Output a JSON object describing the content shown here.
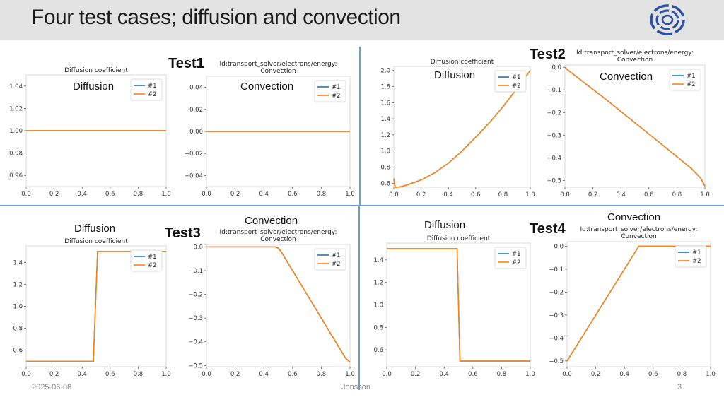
{
  "slide": {
    "title": "Four test cases; diffusion and convection",
    "test1_label": "Test1",
    "test2_label": "Test2",
    "test3_label": "Test3",
    "test4_label": "Test4",
    "footer": {
      "date": "2025-06-08",
      "author": "Jonsson",
      "page": "3"
    }
  },
  "labels": {
    "diffusion": "Diffusion",
    "convection": "Convection"
  },
  "colors": {
    "series1": "#1f77b4",
    "series2": "#ff7f0e",
    "divider": "#6a9fd0",
    "header_bg": "#e3e3e3"
  },
  "chart_data": [
    {
      "id": "t1d",
      "type": "line",
      "title": "Diffusion coefficient",
      "title2": "",
      "overlay": "Diffusion",
      "xlim": [
        0,
        1
      ],
      "ylim": [
        0.95,
        1.05
      ],
      "xticks": [
        "0.0",
        "0.2",
        "0.4",
        "0.6",
        "0.8",
        "1.0"
      ],
      "yticks": [
        "0.96",
        "0.98",
        "1.00",
        "1.02",
        "1.04"
      ],
      "series": [
        {
          "name": "#1",
          "x": [
            0,
            1
          ],
          "y": [
            1,
            1
          ]
        },
        {
          "name": "#2",
          "x": [
            0,
            1
          ],
          "y": [
            1,
            1
          ]
        }
      ]
    },
    {
      "id": "t1c",
      "type": "line",
      "title": "Id:transport_solver/electrons/energy:",
      "title2": "Convection",
      "overlay": "Convection",
      "xlim": [
        0,
        1
      ],
      "ylim": [
        -0.05,
        0.05
      ],
      "xticks": [
        "0.0",
        "0.2",
        "0.4",
        "0.6",
        "0.8",
        "1.0"
      ],
      "yticks": [
        "−0.04",
        "−0.02",
        "0.00",
        "0.02",
        "0.04"
      ],
      "series": [
        {
          "name": "#1",
          "x": [
            0,
            1
          ],
          "y": [
            0,
            0
          ]
        },
        {
          "name": "#2",
          "x": [
            0,
            1
          ],
          "y": [
            0,
            0
          ]
        }
      ]
    },
    {
      "id": "t2d",
      "type": "line",
      "title": "Diffusion coefficient",
      "title2": "",
      "overlay": "Diffusion",
      "xlim": [
        0,
        1
      ],
      "ylim": [
        0.55,
        2.05
      ],
      "xticks": [
        "0.0",
        "0.2",
        "0.4",
        "0.6",
        "0.8",
        "1.0"
      ],
      "yticks": [
        "0.6",
        "0.8",
        "1.0",
        "1.2",
        "1.4",
        "1.6",
        "1.8",
        "2.0"
      ],
      "series": [
        {
          "name": "#1",
          "x": [
            0,
            0.01,
            0.02,
            0.05,
            0.1,
            0.2,
            0.3,
            0.4,
            0.5,
            0.6,
            0.7,
            0.8,
            0.9,
            1.0
          ],
          "y": [
            0.66,
            0.55,
            0.55,
            0.555,
            0.58,
            0.64,
            0.73,
            0.85,
            1.0,
            1.17,
            1.35,
            1.55,
            1.77,
            2.0
          ]
        },
        {
          "name": "#2",
          "x": [
            0,
            0.01,
            0.02,
            0.05,
            0.1,
            0.2,
            0.3,
            0.4,
            0.5,
            0.6,
            0.7,
            0.8,
            0.9,
            1.0
          ],
          "y": [
            0.66,
            0.55,
            0.55,
            0.555,
            0.58,
            0.64,
            0.73,
            0.85,
            1.0,
            1.17,
            1.35,
            1.55,
            1.77,
            2.0
          ]
        }
      ]
    },
    {
      "id": "t2c",
      "type": "line",
      "title": "Id:transport_solver/electrons/energy:",
      "title2": "Convection",
      "overlay": "Convection",
      "xlim": [
        0,
        1
      ],
      "ylim": [
        -0.53,
        0.01
      ],
      "xticks": [
        "0.0",
        "0.2",
        "0.4",
        "0.6",
        "0.8",
        "1.0"
      ],
      "yticks": [
        "−0.5",
        "−0.4",
        "−0.3",
        "−0.2",
        "−0.1",
        "0.0"
      ],
      "series": [
        {
          "name": "#1",
          "x": [
            0,
            0.02,
            0.1,
            0.3,
            0.5,
            0.7,
            0.9,
            0.97,
            1.0
          ],
          "y": [
            0,
            -0.012,
            -0.05,
            -0.145,
            -0.245,
            -0.345,
            -0.445,
            -0.49,
            -0.525
          ]
        },
        {
          "name": "#2",
          "x": [
            0,
            0.02,
            0.1,
            0.3,
            0.5,
            0.7,
            0.9,
            0.97,
            1.0
          ],
          "y": [
            0,
            -0.012,
            -0.05,
            -0.145,
            -0.245,
            -0.345,
            -0.445,
            -0.49,
            -0.525
          ]
        }
      ]
    },
    {
      "id": "t3d",
      "type": "line",
      "title": "Diffusion coefficient",
      "title2": "",
      "overlay": "Diffusion",
      "xlim": [
        0,
        1
      ],
      "ylim": [
        0.45,
        1.55
      ],
      "xticks": [
        "0.0",
        "0.2",
        "0.4",
        "0.6",
        "0.8",
        "1.0"
      ],
      "yticks": [
        "0.6",
        "0.8",
        "1.0",
        "1.2",
        "1.4"
      ],
      "series": [
        {
          "name": "#1",
          "x": [
            0,
            0.48,
            0.51,
            1.0
          ],
          "y": [
            0.5,
            0.5,
            1.5,
            1.5
          ]
        },
        {
          "name": "#2",
          "x": [
            0,
            0.48,
            0.51,
            1.0
          ],
          "y": [
            0.5,
            0.5,
            1.5,
            1.5
          ]
        }
      ]
    },
    {
      "id": "t3c",
      "type": "line",
      "title": "Id:transport_solver/electrons/energy:",
      "title2": "Convection",
      "overlay": "Convection",
      "xlim": [
        0,
        1
      ],
      "ylim": [
        -0.505,
        0.01
      ],
      "xticks": [
        "0.0",
        "0.2",
        "0.4",
        "0.6",
        "0.8",
        "1.0"
      ],
      "yticks": [
        "−0.5",
        "−0.4",
        "−0.3",
        "−0.2",
        "−0.1",
        "0.0"
      ],
      "series": [
        {
          "name": "#1",
          "x": [
            0,
            0.48,
            0.5,
            0.52,
            0.7,
            0.9,
            0.97,
            1.0
          ],
          "y": [
            0,
            0,
            -0.005,
            -0.02,
            -0.2,
            -0.4,
            -0.47,
            -0.485
          ]
        },
        {
          "name": "#2",
          "x": [
            0,
            0.48,
            0.5,
            0.52,
            0.7,
            0.9,
            0.97,
            1.0
          ],
          "y": [
            0,
            0,
            -0.005,
            -0.02,
            -0.2,
            -0.4,
            -0.47,
            -0.485
          ]
        }
      ]
    },
    {
      "id": "t4d",
      "type": "line",
      "title": "Diffusion coefficient",
      "title2": "",
      "overlay": "Diffusion",
      "xlim": [
        0,
        1
      ],
      "ylim": [
        0.45,
        1.55
      ],
      "xticks": [
        "0.0",
        "0.2",
        "0.4",
        "0.6",
        "0.8",
        "1.0"
      ],
      "yticks": [
        "0.6",
        "0.8",
        "1.0",
        "1.2",
        "1.4"
      ],
      "series": [
        {
          "name": "#1",
          "x": [
            0,
            0.49,
            0.51,
            1.0
          ],
          "y": [
            1.5,
            1.5,
            0.5,
            0.5
          ]
        },
        {
          "name": "#2",
          "x": [
            0,
            0.49,
            0.51,
            1.0
          ],
          "y": [
            1.5,
            1.5,
            0.5,
            0.5
          ]
        }
      ]
    },
    {
      "id": "t4c",
      "type": "line",
      "title": "Id:transport_solver/electrons/energy:",
      "title2": "Convection",
      "overlay": "Convection",
      "xlim": [
        0,
        1
      ],
      "ylim": [
        -0.525,
        0.02
      ],
      "xticks": [
        "0.0",
        "0.2",
        "0.4",
        "0.6",
        "0.8",
        "1.0"
      ],
      "yticks": [
        "−0.5",
        "−0.4",
        "−0.3",
        "−0.2",
        "−0.1",
        "0.0"
      ],
      "series": [
        {
          "name": "#1",
          "x": [
            0,
            0.48,
            0.5,
            0.52,
            1.0
          ],
          "y": [
            -0.5,
            -0.02,
            0,
            0,
            0
          ]
        },
        {
          "name": "#2",
          "x": [
            0,
            0.48,
            0.5,
            0.52,
            1.0
          ],
          "y": [
            -0.5,
            -0.02,
            0,
            0,
            0
          ]
        }
      ]
    }
  ]
}
